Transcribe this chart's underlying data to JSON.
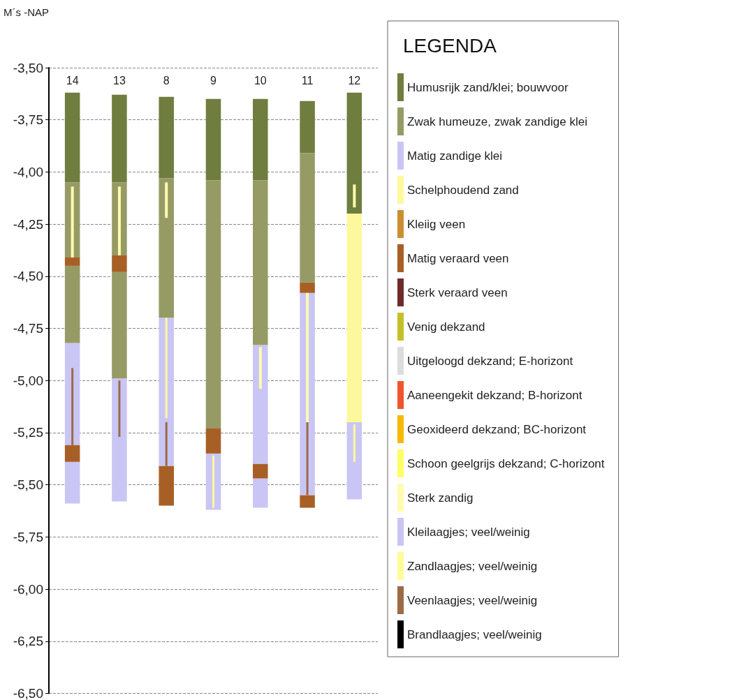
{
  "chart_data": {
    "type": "bar",
    "ylabel": "M´s -NAP",
    "legend_title": "LEGENDA",
    "legend": "right",
    "grid": "y",
    "categories": [
      "14",
      "13",
      "8",
      "9",
      "10",
      "11",
      "12"
    ],
    "ylim": [
      -6.5,
      -3.5
    ],
    "yticks": [
      {
        "value": -3.5,
        "label": "-3,50"
      },
      {
        "value": -3.75,
        "label": "-3,75"
      },
      {
        "value": -4.0,
        "label": "-4,00"
      },
      {
        "value": -4.25,
        "label": "-4,25"
      },
      {
        "value": -4.5,
        "label": "-4,50"
      },
      {
        "value": -4.75,
        "label": "-4,75"
      },
      {
        "value": -5.0,
        "label": "-5,00"
      },
      {
        "value": -5.25,
        "label": "-5,25"
      },
      {
        "value": -5.5,
        "label": "-5,50"
      },
      {
        "value": -5.75,
        "label": "-5,75"
      },
      {
        "value": -6.0,
        "label": "-6,00"
      },
      {
        "value": -6.25,
        "label": "-6,25"
      },
      {
        "value": -6.5,
        "label": "-6,50"
      }
    ],
    "series": [
      {
        "name": "Humusrijk zand/klei; bouwvoor",
        "color": "#6f7d3f",
        "base": [
          -3.62,
          -3.63,
          -3.64,
          -3.65,
          -3.65,
          -3.66,
          -3.62
        ],
        "values": [
          -0.43,
          -0.42,
          -0.39,
          -0.39,
          -0.39,
          -0.25,
          -0.58
        ]
      },
      {
        "name": "Zwak humeuze, zwak zandige klei",
        "color": "#969b66",
        "base": [
          -4.05,
          -4.05,
          -4.03,
          -4.04,
          -4.04,
          -3.91,
          null
        ],
        "values": [
          -0.36,
          -0.35,
          -0.67,
          -1.19,
          -0.79,
          -0.62,
          null
        ]
      },
      {
        "name": "Matig zandige klei",
        "color": "#c9c6f5",
        "base": [
          -4.82,
          -4.99,
          -4.7,
          -5.35,
          -4.83,
          -4.58,
          -5.2
        ],
        "values": [
          -0.49,
          -0.59,
          -0.71,
          -0.27,
          -0.57,
          -0.97,
          -0.37
        ]
      },
      {
        "name": "Schelphoudend zand",
        "color": "#fdf89c",
        "base": [
          null,
          null,
          null,
          null,
          null,
          null,
          -4.2
        ],
        "values": [
          null,
          null,
          null,
          null,
          null,
          null,
          -1.0
        ]
      },
      {
        "name": "Kleiig veen",
        "color": "#cc8e30",
        "base": [
          null,
          null,
          null,
          null,
          null,
          null,
          null
        ],
        "values": [
          null,
          null,
          null,
          null,
          null,
          null,
          null
        ]
      },
      {
        "name": "Matig veraard veen",
        "color": "#a85f26",
        "base": [
          -4.41,
          -4.4,
          -5.41,
          -5.23,
          -5.4,
          -4.53,
          null
        ],
        "values": [
          -0.04,
          -0.08,
          -0.19,
          -0.12,
          -0.07,
          -0.05,
          null
        ]
      },
      {
        "name": "Sterk veraard veen",
        "color": "#6e2b2b",
        "base": [
          null,
          null,
          null,
          null,
          null,
          null,
          null
        ],
        "values": [
          null,
          null,
          null,
          null,
          null,
          null,
          null
        ]
      },
      {
        "name": "Venig dekzand",
        "color": "#c5c02a",
        "base": [
          null,
          null,
          null,
          null,
          null,
          null,
          null
        ],
        "values": [
          null,
          null,
          null,
          null,
          null,
          null,
          null
        ]
      },
      {
        "name": "Uitgeloogd dekzand; E-horizont",
        "color": "#dcdcdc",
        "base": [
          null,
          null,
          null,
          null,
          null,
          null,
          null
        ],
        "values": [
          null,
          null,
          null,
          null,
          null,
          null,
          null
        ]
      },
      {
        "name": "Aaneengekit dekzand; B-horizont",
        "color": "#f0562e",
        "base": [
          null,
          null,
          null,
          null,
          null,
          null,
          null
        ],
        "values": [
          null,
          null,
          null,
          null,
          null,
          null,
          null
        ]
      },
      {
        "name": "Geoxideerd dekzand; BC-horizont",
        "color": "#f7b900",
        "base": [
          null,
          null,
          null,
          null,
          null,
          null,
          null
        ],
        "values": [
          null,
          null,
          null,
          null,
          null,
          null,
          null
        ]
      },
      {
        "name": "Schoon geelgrijs dekzand; C-horizont",
        "color": "#ffff66",
        "base": [
          null,
          null,
          null,
          null,
          null,
          null,
          null
        ],
        "values": [
          null,
          null,
          null,
          null,
          null,
          null,
          null
        ]
      },
      {
        "name": "Sterk zandig",
        "color": "#fffbb0",
        "line_style": "dotted",
        "base": [
          -4.07,
          -4.07,
          -4.05,
          null,
          -4.84,
          -4.58,
          -4.06
        ],
        "values": [
          -0.34,
          -0.33,
          -0.17,
          null,
          -0.2,
          -0.62,
          -0.11
        ]
      },
      {
        "name": "Kleilaagjes; veel/weinig",
        "color": "#c9c6f5",
        "line_style": "solid",
        "base": [
          null,
          null,
          null,
          null,
          null,
          null,
          null
        ],
        "values": [
          null,
          null,
          null,
          null,
          null,
          null,
          null
        ]
      },
      {
        "name": "Zandlaagjes; veel/weinig",
        "color": "#fffb99",
        "line_style": "solid",
        "base": [
          null,
          null,
          -4.7,
          -5.36,
          null,
          null,
          -5.21
        ],
        "values": [
          null,
          null,
          -0.48,
          -0.25,
          null,
          null,
          -0.18
        ]
      },
      {
        "name": "Veenlaagjes; veel/weinig",
        "color": "#9c6b45",
        "line_style": "solid",
        "base": [
          -4.94,
          -5.0,
          -5.2,
          null,
          null,
          -5.2,
          null
        ],
        "values": [
          -0.37,
          -0.27,
          -0.21,
          null,
          null,
          -0.35,
          null
        ]
      },
      {
        "name": "Brandlaagjes; veel/weinig",
        "color": "#000000",
        "line_style": "solid",
        "base": [
          null,
          null,
          null,
          null,
          null,
          null,
          null
        ],
        "values": [
          null,
          null,
          null,
          null,
          null,
          null,
          null
        ]
      },
      {
        "color": "#969b66",
        "base": [
          -4.45,
          -4.48,
          null,
          null,
          null,
          null,
          null
        ],
        "values": [
          -0.37,
          -0.51,
          null,
          null,
          null,
          null,
          null
        ]
      },
      {
        "color": "#c9c6f5",
        "base": [
          -5.39,
          null,
          null,
          null,
          -5.47,
          null,
          null
        ],
        "values": [
          -0.2,
          null,
          null,
          null,
          -0.14,
          null,
          null
        ]
      },
      {
        "color": "#a85f26",
        "base": [
          -5.31,
          null,
          null,
          null,
          null,
          -5.55,
          null
        ],
        "values": [
          -0.08,
          null,
          null,
          null,
          null,
          -0.06,
          null
        ]
      }
    ]
  }
}
